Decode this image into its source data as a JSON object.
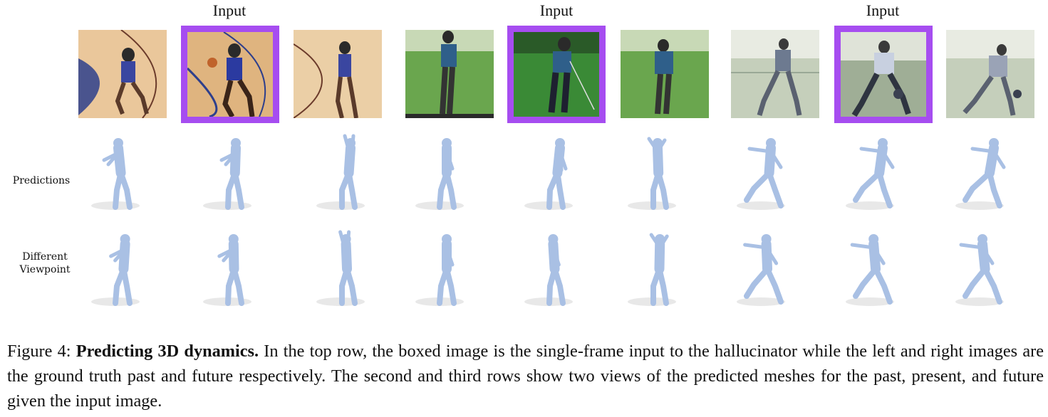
{
  "header": {
    "input_labels": [
      "Input",
      "Input",
      "Input"
    ]
  },
  "groups": [
    {
      "activity": "basketball",
      "scene_colors": [
        "#f1cfa0",
        "#d9ad7a",
        "#2e3f8c"
      ],
      "figure_color": "#2a2a4a"
    },
    {
      "activity": "golf",
      "scene_colors": [
        "#6fae52",
        "#3f7a33",
        "#c9dcb8"
      ],
      "figure_color": "#2c3b52"
    },
    {
      "activity": "bowling",
      "scene_colors": [
        "#c6d0bc",
        "#8fa08a",
        "#eef0e8"
      ],
      "figure_color": "#4a4f5c"
    }
  ],
  "rows": {
    "predictions_label": "Predictions",
    "viewpoint_label_line1": "Different",
    "viewpoint_label_line2": "Viewpoint"
  },
  "mesh_color": "#a9c0e4",
  "boxed_color": "#a64df0",
  "caption": {
    "prefix": "Figure 4:",
    "title": "Predicting 3D dynamics.",
    "body": "In the top row, the boxed image is the single-frame input to the hallucinator while the left and right images are the ground truth past and future respectively. The second and third rows show two views of the predicted meshes for the past, present, and future given the input image."
  }
}
